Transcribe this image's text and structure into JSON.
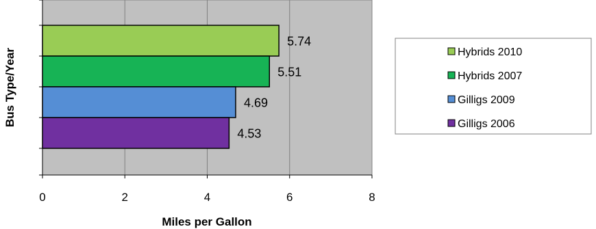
{
  "chart_data": {
    "type": "bar",
    "orientation": "horizontal",
    "title": "",
    "xlabel": "Miles per Gallon",
    "ylabel": "Bus Type/Year",
    "xlim": [
      0,
      8
    ],
    "xticks": [
      0,
      2,
      4,
      6,
      8
    ],
    "grid": true,
    "legend": "right",
    "bars": [
      {
        "name": "Hybrids 2010",
        "value": 5.74,
        "label": "5.74",
        "color": "#99cc55"
      },
      {
        "name": "Hybrids 2007",
        "value": 5.51,
        "label": "5.51",
        "color": "#17b355"
      },
      {
        "name": "Gilligs 2009",
        "value": 4.69,
        "label": "4.69",
        "color": "#558ed5"
      },
      {
        "name": "Gilligs 2006",
        "value": 4.53,
        "label": "4.53",
        "color": "#7030a0"
      }
    ],
    "plot_background": "#c0c0c0"
  }
}
